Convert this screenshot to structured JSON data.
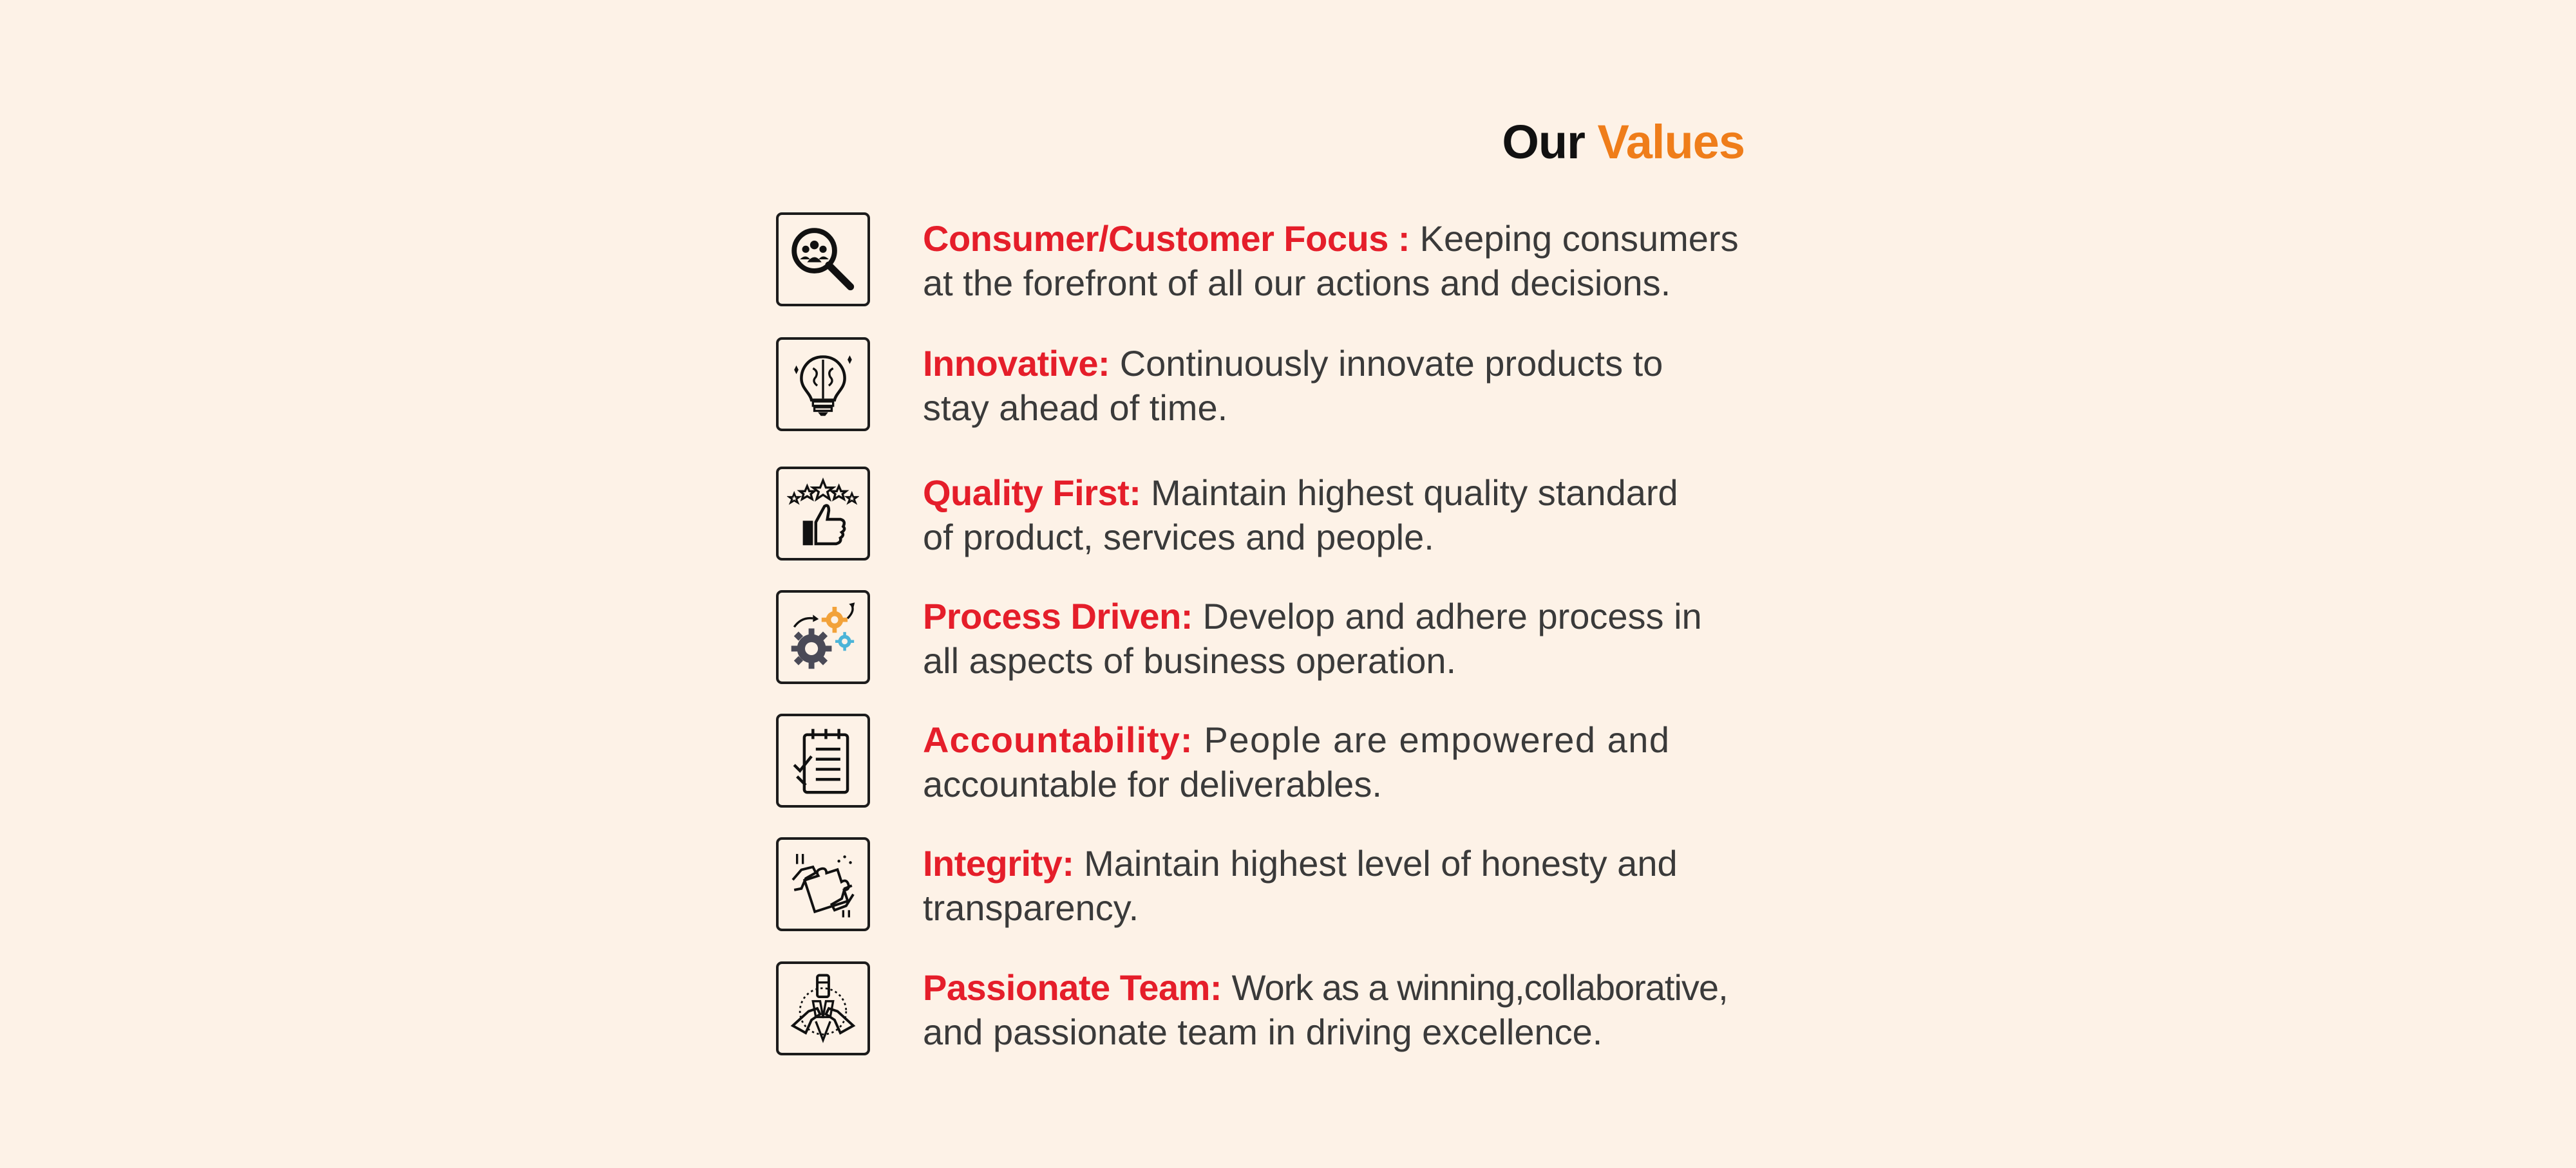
{
  "title": {
    "part1": "Our",
    "part2": "Values"
  },
  "values": [
    {
      "label": "Consumer/Customer Focus :",
      "line1": "Keeping consumers",
      "line2": "at the forefront of all our actions and decisions.",
      "icon": "customer-search-icon"
    },
    {
      "label": "Innovative:",
      "line1": "Continuously innovate products to",
      "line2": "stay ahead of time.",
      "icon": "brain-lightbulb-icon"
    },
    {
      "label": "Quality First:",
      "line1": "Maintain highest quality standard",
      "line2": "of product, services and people.",
      "icon": "thumbs-up-stars-icon"
    },
    {
      "label": "Process Driven:",
      "line1": "Develop and adhere process in",
      "line2": "all aspects of business operation.",
      "icon": "gears-process-icon"
    },
    {
      "label": "Accountability:",
      "line1": "People are empowered and",
      "line2": "accountable for deliverables.",
      "icon": "checklist-clipboard-icon"
    },
    {
      "label": "Integrity:",
      "line1": "Maintain highest level of honesty and",
      "line2": "transparency.",
      "icon": "puzzle-hands-icon"
    },
    {
      "label": "Passionate Team:",
      "line1": "Work as a winning,collaborative,",
      "line2": "and passionate team in driving excellence.",
      "icon": "team-hands-icon"
    }
  ],
  "colors": {
    "background": "#fdf2e7",
    "label_red": "#e51e2a",
    "title_orange": "#ef7d1a",
    "body_text": "#3a3a3a",
    "gear_orange": "#f2a23a",
    "gear_blue": "#4bb4d8",
    "gear_dark": "#4a4a57"
  }
}
